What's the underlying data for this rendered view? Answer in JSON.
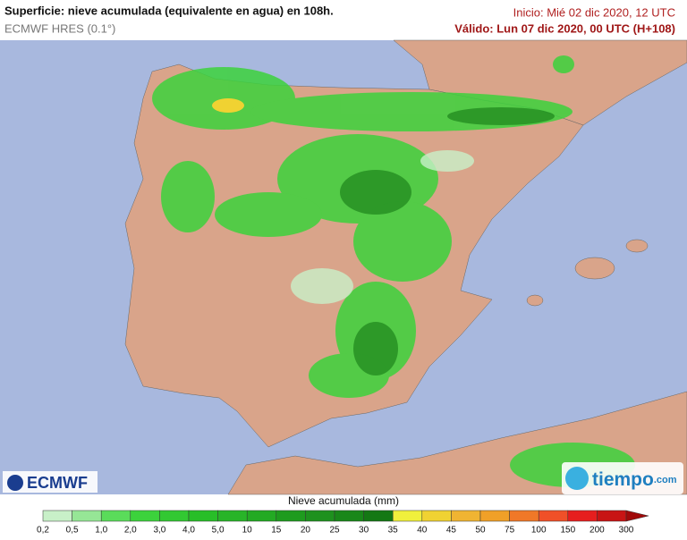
{
  "header": {
    "title": "Superficie: nieve acumulada (equivalente en agua) en 108h.",
    "model": "ECMWF HRES (0.1°)",
    "init": "Inicio: Mié 02 dic 2020, 12 UTC",
    "valid": "Válido: Lun 07 dic 2020, 00 UTC (H+108)"
  },
  "logos": {
    "left": "ECMWF",
    "right": "tiempo",
    "right_suffix": ".com"
  },
  "legend": {
    "title": "Nieve acumulada (mm)",
    "ticks": [
      "0,2",
      "0,5",
      "1,0",
      "2,0",
      "3,0",
      "4,0",
      "5,0",
      "10",
      "15",
      "20",
      "25",
      "30",
      "35",
      "40",
      "45",
      "50",
      "75",
      "100",
      "150",
      "200",
      "300"
    ],
    "colors": [
      "#c8f0c8",
      "#96e696",
      "#5adc5a",
      "#3cd23c",
      "#32c832",
      "#28be28",
      "#28b428",
      "#23aa23",
      "#1e9b1e",
      "#1e911e",
      "#198719",
      "#147814",
      "#f0f03c",
      "#f0d232",
      "#f0b432",
      "#f0a028",
      "#f07828",
      "#f05028",
      "#e61e1e",
      "#c81414",
      "#a00a0a"
    ]
  }
}
